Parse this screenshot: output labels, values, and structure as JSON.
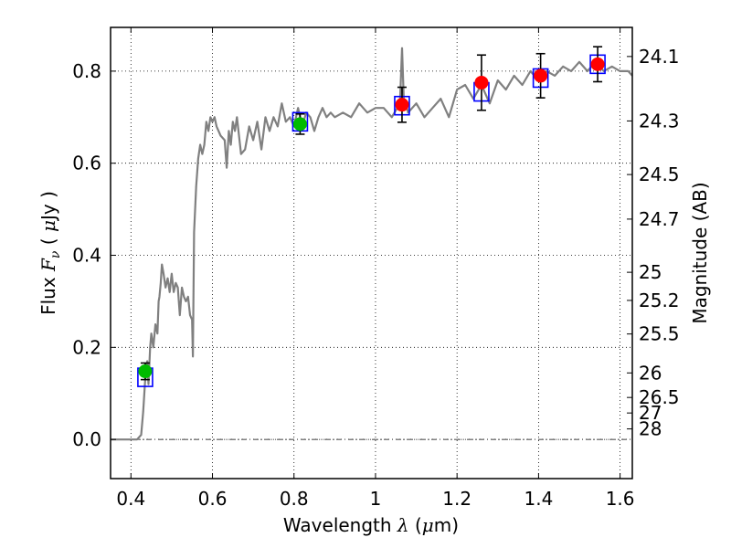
{
  "chart_data": {
    "type": "scatter",
    "xlabel": "Wavelength  λ (μm)",
    "xlabel_parts": {
      "pre": "Wavelength  ",
      "sym": "λ",
      "post": " (",
      "mu": "μ",
      "unit": "m)"
    },
    "ylabel": "Flux  Fν  ( μJy )",
    "ylabel_parts": {
      "pre": "Flux  ",
      "sym": "F",
      "sub": "ν",
      "mid": "  ( ",
      "mu": "μ",
      "unit": "Jy )"
    },
    "y2label": "Magnitude (AB)",
    "xlim": [
      0.35,
      1.63
    ],
    "ylim": [
      -0.085,
      0.895
    ],
    "grid": true,
    "x_ticks": [
      {
        "value": 0.4,
        "label": "0.4"
      },
      {
        "value": 0.6,
        "label": "0.6"
      },
      {
        "value": 0.8,
        "label": "0.8"
      },
      {
        "value": 1.0,
        "label": "1"
      },
      {
        "value": 1.2,
        "label": "1.2"
      },
      {
        "value": 1.4,
        "label": "1.4"
      },
      {
        "value": 1.6,
        "label": "1.6"
      }
    ],
    "y_ticks": [
      {
        "value": 0.0,
        "label": "0.0"
      },
      {
        "value": 0.2,
        "label": "0.2"
      },
      {
        "value": 0.4,
        "label": "0.4"
      },
      {
        "value": 0.6,
        "label": "0.6"
      },
      {
        "value": 0.8,
        "label": "0.8"
      }
    ],
    "mag_ticks": [
      {
        "flux": 0.8318,
        "label": "24.1"
      },
      {
        "flux": 0.6918,
        "label": "24.3"
      },
      {
        "flux": 0.5754,
        "label": "24.5"
      },
      {
        "flux": 0.4786,
        "label": "24.7"
      },
      {
        "flux": 0.3631,
        "label": "25"
      },
      {
        "flux": 0.302,
        "label": "25.2"
      },
      {
        "flux": 0.2291,
        "label": "25.5"
      },
      {
        "flux": 0.1445,
        "label": "26"
      },
      {
        "flux": 0.0912,
        "label": "26.5"
      },
      {
        "flux": 0.0575,
        "label": "27"
      },
      {
        "flux": 0.0229,
        "label": "28"
      }
    ],
    "model_spectrum": {
      "name": "model SED",
      "color": "#808080",
      "x": [
        0.35,
        0.4,
        0.415,
        0.425,
        0.43,
        0.435,
        0.44,
        0.443,
        0.447,
        0.45,
        0.455,
        0.46,
        0.465,
        0.468,
        0.47,
        0.473,
        0.476,
        0.48,
        0.485,
        0.49,
        0.495,
        0.5,
        0.505,
        0.51,
        0.515,
        0.52,
        0.525,
        0.53,
        0.535,
        0.54,
        0.545,
        0.55,
        0.552,
        0.555,
        0.56,
        0.565,
        0.57,
        0.575,
        0.58,
        0.585,
        0.59,
        0.595,
        0.6,
        0.605,
        0.61,
        0.62,
        0.63,
        0.635,
        0.64,
        0.645,
        0.65,
        0.655,
        0.66,
        0.67,
        0.68,
        0.69,
        0.7,
        0.71,
        0.72,
        0.73,
        0.74,
        0.75,
        0.76,
        0.77,
        0.78,
        0.79,
        0.8,
        0.81,
        0.82,
        0.83,
        0.84,
        0.85,
        0.86,
        0.87,
        0.88,
        0.89,
        0.9,
        0.92,
        0.94,
        0.96,
        0.98,
        1.0,
        1.02,
        1.04,
        1.06,
        1.065,
        1.07,
        1.075,
        1.08,
        1.1,
        1.12,
        1.14,
        1.16,
        1.18,
        1.2,
        1.22,
        1.24,
        1.26,
        1.28,
        1.3,
        1.32,
        1.34,
        1.36,
        1.38,
        1.4,
        1.42,
        1.44,
        1.46,
        1.48,
        1.5,
        1.52,
        1.54,
        1.56,
        1.58,
        1.6,
        1.62,
        1.63
      ],
      "y": [
        0.0,
        0.0,
        0.0,
        0.01,
        0.06,
        0.13,
        0.17,
        0.12,
        0.2,
        0.23,
        0.2,
        0.25,
        0.23,
        0.3,
        0.31,
        0.34,
        0.38,
        0.36,
        0.33,
        0.35,
        0.32,
        0.36,
        0.32,
        0.34,
        0.33,
        0.27,
        0.33,
        0.31,
        0.3,
        0.31,
        0.27,
        0.26,
        0.18,
        0.45,
        0.55,
        0.61,
        0.64,
        0.62,
        0.64,
        0.69,
        0.67,
        0.7,
        0.69,
        0.7,
        0.68,
        0.66,
        0.65,
        0.59,
        0.67,
        0.64,
        0.69,
        0.67,
        0.7,
        0.62,
        0.63,
        0.68,
        0.65,
        0.69,
        0.63,
        0.7,
        0.67,
        0.7,
        0.68,
        0.73,
        0.69,
        0.7,
        0.68,
        0.72,
        0.68,
        0.71,
        0.7,
        0.67,
        0.7,
        0.72,
        0.7,
        0.71,
        0.7,
        0.71,
        0.7,
        0.73,
        0.71,
        0.72,
        0.72,
        0.7,
        0.73,
        0.85,
        0.72,
        0.73,
        0.71,
        0.73,
        0.7,
        0.72,
        0.74,
        0.7,
        0.76,
        0.77,
        0.74,
        0.77,
        0.73,
        0.78,
        0.76,
        0.79,
        0.77,
        0.8,
        0.78,
        0.8,
        0.79,
        0.81,
        0.8,
        0.82,
        0.8,
        0.82,
        0.8,
        0.81,
        0.8,
        0.8,
        0.79
      ]
    },
    "model_photometry": {
      "marker": "open-square",
      "color": "#0000ff",
      "x": [
        0.435,
        0.815,
        1.065,
        1.26,
        1.405,
        1.545
      ],
      "y": [
        0.135,
        0.69,
        0.725,
        0.755,
        0.785,
        0.815
      ]
    },
    "detections_green": {
      "marker": "circle",
      "color": "#00bb00",
      "x": [
        0.435,
        0.815
      ],
      "y": [
        0.148,
        0.685
      ],
      "err": [
        0.018,
        0.022
      ]
    },
    "detections_red": {
      "marker": "circle",
      "color": "#ff0000",
      "x": [
        1.065,
        1.26,
        1.405,
        1.545
      ],
      "y": [
        0.727,
        0.775,
        0.79,
        0.815
      ],
      "err": [
        0.038,
        0.06,
        0.048,
        0.038
      ]
    }
  }
}
